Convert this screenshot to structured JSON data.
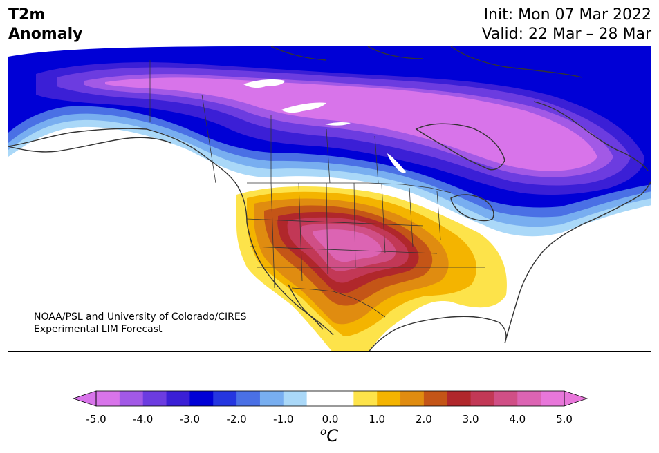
{
  "title": {
    "left_line1": "T2m",
    "left_line2": "Anomaly",
    "init": "Init: Mon 07 Mar 2022",
    "valid": "Valid: 22 Mar – 28 Mar"
  },
  "credit": {
    "line1": "NOAA/PSL and University of Colorado/CIRES",
    "line2": "Experimental LIM Forecast"
  },
  "colorbar": {
    "ticks": [
      "-5.0",
      "-4.0",
      "-3.0",
      "-2.0",
      "-1.0",
      "0.0",
      "1.0",
      "2.0",
      "3.0",
      "4.0",
      "5.0"
    ],
    "unit_base": "C",
    "unit_sup": "o",
    "colors": [
      "#d874ea",
      "#a259e6",
      "#6c3ce0",
      "#3b1fd6",
      "#0000d6",
      "#2536e0",
      "#4a70e5",
      "#78aef0",
      "#aad8f8",
      "#ffffff",
      "#ffffff",
      "#fde34a",
      "#f4b400",
      "#e08c10",
      "#c45517",
      "#b0272b",
      "#c23856",
      "#d04f86",
      "#dc64b3",
      "#e877da"
    ],
    "extend_low": "#d874ea",
    "extend_high": "#e877da"
  },
  "map": {
    "region": "North America",
    "variable": "2 m temperature anomaly",
    "palette": {
      "cold_strong": "#d874ea",
      "cold_purple": "#a259e6",
      "cold_violet": "#6c3ce0",
      "cold_indigo": "#3b1fd6",
      "cold_blue": "#0000d6",
      "cold_mid": "#4a70e5",
      "cold_light": "#78aef0",
      "cold_pale": "#aad8f8",
      "warm_yellow": "#fde34a",
      "warm_gold": "#f4b400",
      "warm_orange": "#e08c10",
      "warm_rust": "#c45517",
      "warm_red": "#b0272b",
      "warm_crimson": "#c23856",
      "warm_pink": "#d04f86",
      "coast": "#333333"
    }
  }
}
